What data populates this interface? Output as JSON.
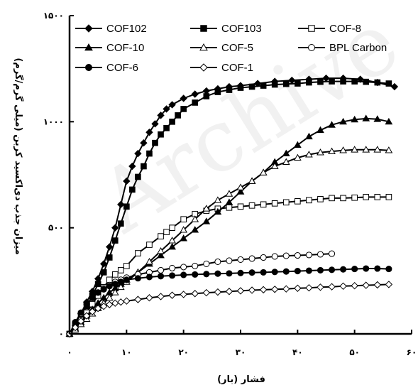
{
  "chart_data": {
    "type": "line",
    "xlabel": "فشار (بار)",
    "ylabel": "میزان جذب دی‌اکسید کربن (میلی گرم/گرم)",
    "xlim": [
      0,
      60
    ],
    "ylim": [
      0,
      1500
    ],
    "x_ticks": [
      0,
      10,
      20,
      30,
      40,
      50,
      60
    ],
    "x_tick_labels": [
      "۰",
      "۱۰",
      "۲۰",
      "۳۰",
      "۴۰",
      "۵۰",
      "۶۰"
    ],
    "y_ticks": [
      0,
      500,
      1000,
      1500
    ],
    "y_tick_labels": [
      "۰",
      "۵۰۰",
      "۱۰۰۰",
      "۱۵۰۰"
    ],
    "grid": false,
    "legend_position": "top",
    "watermark": "Archive",
    "series": [
      {
        "name": "COF102",
        "marker": "diamond-filled",
        "color": "#000000",
        "x": [
          0,
          1,
          2,
          3,
          4,
          5,
          6,
          7,
          8,
          9,
          10,
          11,
          12,
          13,
          14,
          15,
          16,
          17,
          18,
          20,
          22,
          24,
          26,
          28,
          30,
          33,
          36,
          39,
          42,
          45,
          48,
          51,
          54,
          57
        ],
        "y": [
          0,
          40,
          95,
          150,
          200,
          260,
          330,
          410,
          500,
          610,
          720,
          790,
          850,
          900,
          950,
          990,
          1030,
          1060,
          1080,
          1110,
          1130,
          1145,
          1155,
          1165,
          1170,
          1180,
          1190,
          1195,
          1200,
          1205,
          1205,
          1200,
          1185,
          1165
        ]
      },
      {
        "name": "COF103",
        "marker": "square-filled",
        "color": "#000000",
        "x": [
          0,
          1,
          2,
          3,
          4,
          5,
          6,
          7,
          8,
          9,
          10,
          11,
          12,
          13,
          14,
          15,
          16,
          17,
          18,
          19,
          20,
          22,
          24,
          26,
          28,
          30,
          32,
          34,
          36,
          38,
          40,
          42,
          44,
          46,
          48,
          50,
          52,
          54,
          56
        ],
        "y": [
          0,
          35,
          80,
          130,
          180,
          235,
          290,
          360,
          440,
          520,
          600,
          680,
          740,
          790,
          850,
          900,
          940,
          970,
          1000,
          1030,
          1060,
          1090,
          1120,
          1140,
          1150,
          1160,
          1165,
          1170,
          1175,
          1178,
          1180,
          1185,
          1188,
          1190,
          1190,
          1190,
          1188,
          1185,
          1180
        ]
      },
      {
        "name": "COF-8",
        "marker": "square-open",
        "color": "#000000",
        "x": [
          0,
          1,
          2,
          3,
          4,
          5,
          6,
          7,
          8,
          9,
          10,
          12,
          14,
          16,
          17,
          18,
          20,
          22,
          24,
          26,
          28,
          30,
          32,
          34,
          36,
          38,
          40,
          42,
          44,
          46,
          48,
          50,
          52,
          54,
          56
        ],
        "y": [
          0,
          30,
          65,
          100,
          140,
          180,
          220,
          255,
          280,
          300,
          320,
          380,
          420,
          460,
          480,
          500,
          540,
          565,
          580,
          590,
          595,
          600,
          605,
          610,
          615,
          620,
          625,
          630,
          635,
          640,
          640,
          642,
          645,
          645,
          645
        ]
      },
      {
        "name": "COF-10",
        "marker": "triangle-filled",
        "color": "#000000",
        "x": [
          0,
          1,
          2,
          3,
          4,
          5,
          6,
          7,
          8,
          9,
          10,
          12,
          14,
          16,
          18,
          20,
          22,
          24,
          26,
          28,
          30,
          32,
          34,
          36,
          38,
          40,
          42,
          44,
          46,
          48,
          50,
          52,
          54,
          56
        ],
        "y": [
          0,
          25,
          55,
          85,
          115,
          145,
          170,
          195,
          215,
          235,
          255,
          290,
          330,
          370,
          410,
          450,
          490,
          530,
          575,
          620,
          670,
          720,
          760,
          810,
          850,
          890,
          930,
          960,
          985,
          1000,
          1010,
          1015,
          1012,
          1000
        ]
      },
      {
        "name": "COF-5",
        "marker": "triangle-open",
        "color": "#000000",
        "x": [
          0,
          1,
          2,
          3,
          4,
          5,
          6,
          7,
          8,
          9,
          10,
          12,
          14,
          16,
          18,
          20,
          22,
          24,
          26,
          28,
          30,
          32,
          34,
          36,
          38,
          40,
          42,
          44,
          46,
          48,
          50,
          52,
          54,
          56
        ],
        "y": [
          0,
          20,
          45,
          70,
          95,
          120,
          145,
          170,
          195,
          220,
          245,
          290,
          340,
          390,
          440,
          490,
          540,
          590,
          630,
          660,
          690,
          720,
          760,
          790,
          810,
          830,
          845,
          855,
          860,
          865,
          868,
          868,
          868,
          865
        ]
      },
      {
        "name": "BPL Carbon",
        "marker": "circle-open",
        "color": "#000000",
        "x": [
          0,
          1,
          2,
          3,
          4,
          5,
          6,
          7,
          8,
          9,
          10,
          12,
          14,
          16,
          18,
          20,
          22,
          24,
          26,
          28,
          30,
          32,
          34,
          36,
          38,
          40,
          42,
          44,
          46
        ],
        "y": [
          0,
          50,
          95,
          140,
          170,
          195,
          215,
          230,
          245,
          255,
          265,
          280,
          290,
          300,
          310,
          315,
          320,
          330,
          340,
          345,
          350,
          355,
          360,
          365,
          368,
          370,
          372,
          375,
          378
        ]
      },
      {
        "name": "COF-6",
        "marker": "circle-filled",
        "color": "#000000",
        "x": [
          0,
          1,
          2,
          3,
          4,
          5,
          6,
          7,
          8,
          9,
          10,
          12,
          14,
          16,
          18,
          20,
          22,
          24,
          26,
          28,
          30,
          32,
          34,
          36,
          38,
          40,
          42,
          44,
          46,
          48,
          50,
          52,
          54,
          56
        ],
        "y": [
          0,
          55,
          100,
          140,
          170,
          195,
          210,
          225,
          235,
          245,
          255,
          262,
          268,
          272,
          275,
          278,
          280,
          282,
          284,
          285,
          287,
          289,
          290,
          292,
          294,
          296,
          298,
          300,
          302,
          304,
          306,
          308,
          308,
          306
        ]
      },
      {
        "name": "COF-1",
        "marker": "diamond-open",
        "color": "#000000",
        "x": [
          0,
          1,
          2,
          3,
          4,
          5,
          6,
          7,
          8,
          9,
          10,
          12,
          14,
          16,
          18,
          20,
          22,
          24,
          26,
          28,
          30,
          32,
          34,
          36,
          38,
          40,
          42,
          44,
          46,
          48,
          50,
          52,
          54,
          56
        ],
        "y": [
          0,
          30,
          60,
          85,
          105,
          120,
          130,
          138,
          145,
          150,
          155,
          162,
          170,
          176,
          182,
          186,
          190,
          194,
          197,
          200,
          203,
          206,
          208,
          210,
          212,
          215,
          217,
          220,
          222,
          225,
          227,
          229,
          231,
          233
        ]
      }
    ]
  }
}
